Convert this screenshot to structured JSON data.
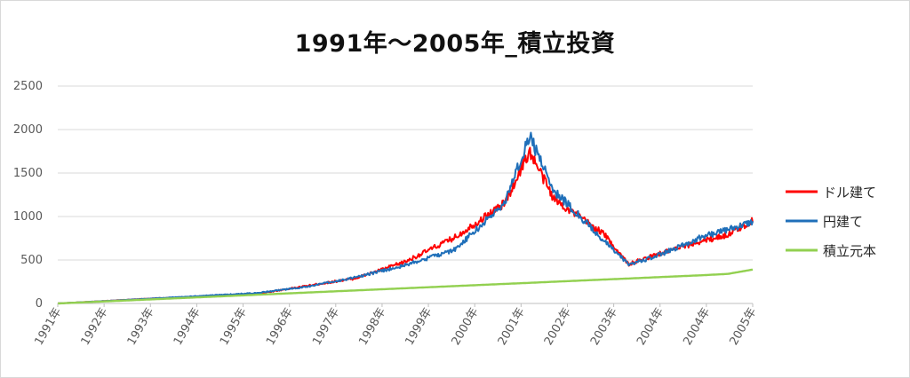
{
  "chart_data": {
    "type": "line",
    "title": "1991年～2005年_積立投資",
    "xlabel": "",
    "ylabel": "",
    "ylim": [
      0,
      2500
    ],
    "y_ticks": [
      0,
      500,
      1000,
      1500,
      2000,
      2500
    ],
    "categories": [
      "1991年",
      "1992年",
      "1993年",
      "1994年",
      "1995年",
      "1996年",
      "1997年",
      "1998年",
      "1999年",
      "2000年",
      "2001年",
      "2002年",
      "2003年",
      "2004年",
      "2004年",
      "2005年"
    ],
    "x": [
      1991.0,
      1992.0,
      1993.0,
      1994.0,
      1995.0,
      1996.0,
      1997.0,
      1998.0,
      1999.0,
      2000.0,
      2000.5,
      2001.0,
      2002.0,
      2002.5,
      2003.0,
      2004.0,
      2004.5,
      2005.0
    ],
    "grid": true,
    "legend_position": "right",
    "series": [
      {
        "name": "ドル建て",
        "color": "#ff0000",
        "values": [
          0,
          30,
          60,
          80,
          110,
          200,
          290,
          480,
          760,
          1150,
          1750,
          1200,
          800,
          450,
          550,
          720,
          790,
          950
        ]
      },
      {
        "name": "円建て",
        "color": "#1f6fb9",
        "values": [
          0,
          30,
          60,
          90,
          120,
          190,
          300,
          440,
          620,
          1150,
          1930,
          1300,
          720,
          450,
          530,
          770,
          850,
          940
        ]
      },
      {
        "name": "積立元本",
        "color": "#92d050",
        "values": [
          0,
          25,
          50,
          75,
          100,
          125,
          150,
          175,
          200,
          225,
          237,
          250,
          275,
          287,
          300,
          325,
          340,
          390
        ]
      }
    ]
  }
}
